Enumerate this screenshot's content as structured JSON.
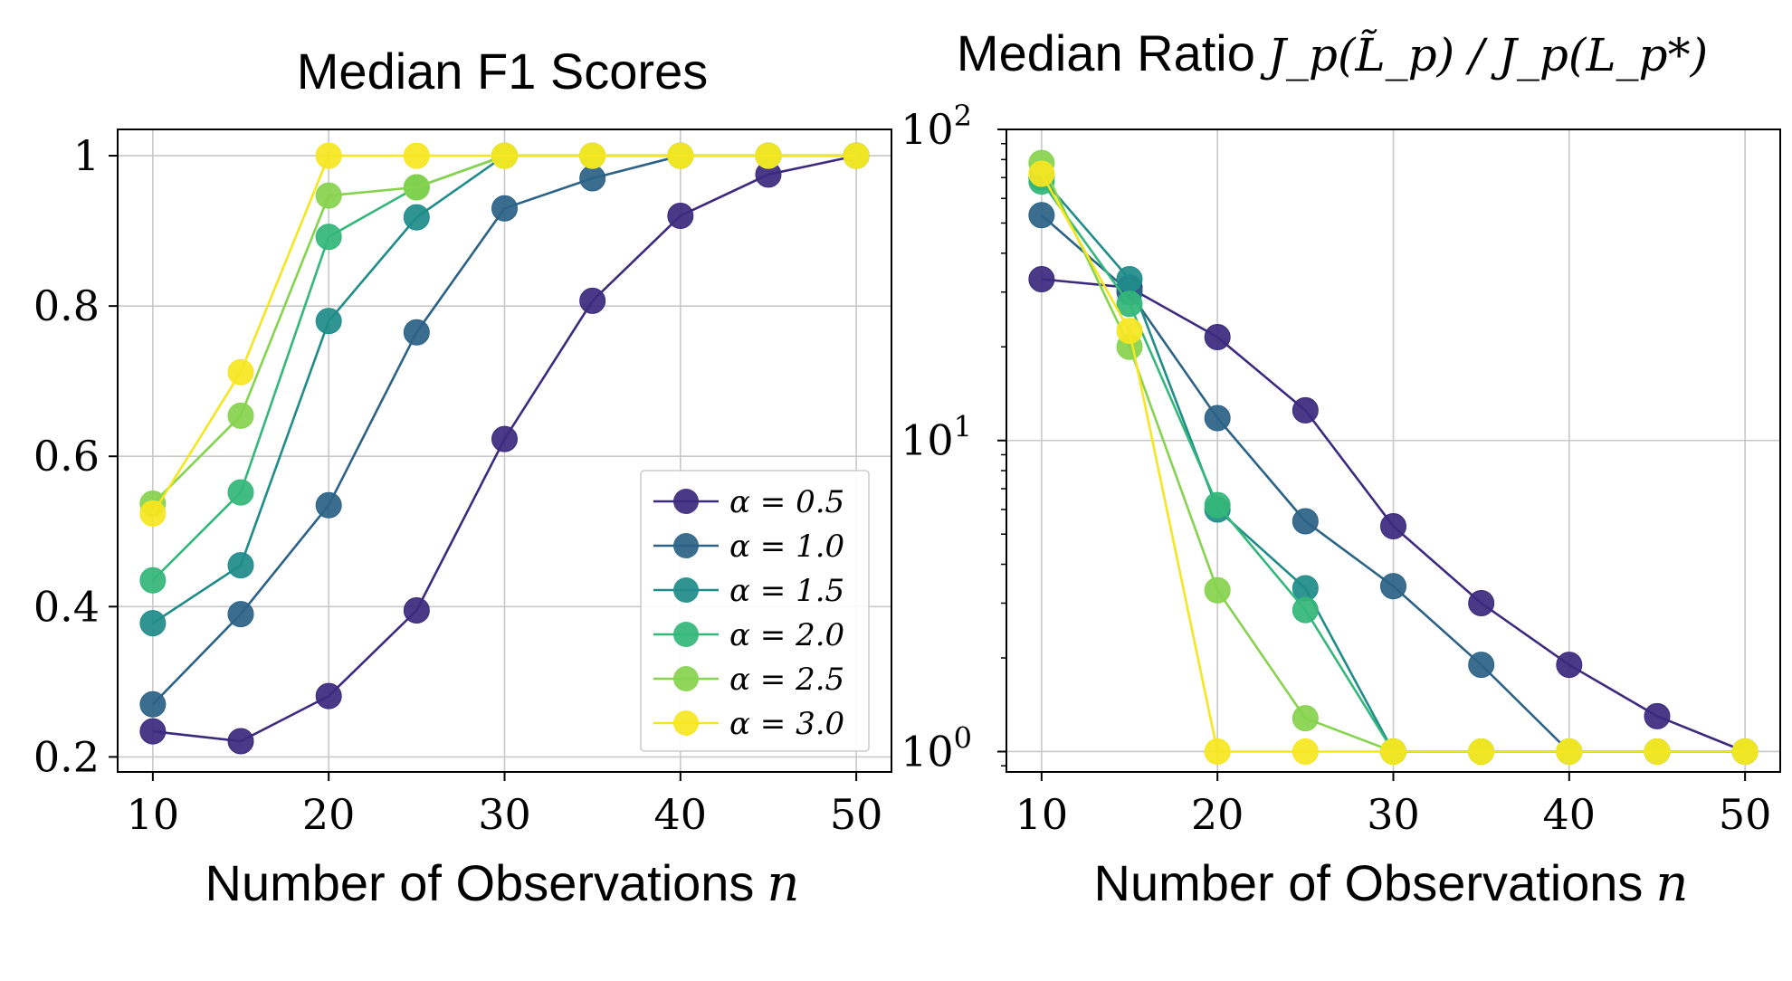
{
  "chart_data": [
    {
      "type": "line",
      "title": "Median F1 Scores",
      "xlabel": "Number of Observations",
      "xlabel_var": "n",
      "ylabel": "",
      "x": [
        10,
        15,
        20,
        25,
        30,
        35,
        40,
        45,
        50
      ],
      "xlim": [
        8,
        52
      ],
      "ylim": [
        0.18,
        1.035
      ],
      "yscale": "linear",
      "xticks": [
        "10",
        "20",
        "30",
        "40",
        "50"
      ],
      "xtick_values": [
        10,
        20,
        30,
        40,
        50
      ],
      "yticks": [
        "0.2",
        "0.4",
        "0.6",
        "0.8",
        "1"
      ],
      "ytick_values": [
        0.2,
        0.4,
        0.6,
        0.8,
        1.0
      ],
      "grid": true,
      "legend": "lower-right",
      "series": [
        {
          "name": "α = 0.5",
          "color": "#3b2a7e",
          "values": [
            0.234,
            0.221,
            0.281,
            0.395,
            0.623,
            0.807,
            0.92,
            0.975,
            1.0
          ]
        },
        {
          "name": "α = 1.0",
          "color": "#2c6286",
          "values": [
            0.27,
            0.39,
            0.535,
            0.765,
            0.93,
            0.97,
            1.0,
            1.0,
            1.0
          ]
        },
        {
          "name": "α = 1.5",
          "color": "#1f8c8a",
          "values": [
            0.378,
            0.455,
            0.78,
            0.918,
            1.0,
            1.0,
            1.0,
            1.0,
            1.0
          ]
        },
        {
          "name": "α = 2.0",
          "color": "#34b77a",
          "values": [
            0.435,
            0.552,
            0.892,
            0.958,
            1.0,
            1.0,
            1.0,
            1.0,
            1.0
          ]
        },
        {
          "name": "α = 2.5",
          "color": "#86d34e",
          "values": [
            0.537,
            0.654,
            0.947,
            0.958,
            1.0,
            1.0,
            1.0,
            1.0,
            1.0
          ]
        },
        {
          "name": "α = 3.0",
          "color": "#f6e621",
          "values": [
            0.524,
            0.712,
            1.0,
            1.0,
            1.0,
            1.0,
            1.0,
            1.0,
            1.0
          ]
        }
      ]
    },
    {
      "type": "line",
      "title": "Median Ratio",
      "title_math": "J_p(L̃_p) / J_p(L_p*)",
      "xlabel": "Number of Observations",
      "xlabel_var": "n",
      "ylabel": "",
      "x": [
        10,
        15,
        20,
        25,
        30,
        35,
        40,
        45,
        50
      ],
      "xlim": [
        8,
        52
      ],
      "ylim": [
        0.86,
        100
      ],
      "yscale": "log",
      "xticks": [
        "10",
        "20",
        "30",
        "40",
        "50"
      ],
      "xtick_values": [
        10,
        20,
        30,
        40,
        50
      ],
      "yticks": [
        "10",
        "10",
        "10"
      ],
      "ytick_exponents": [
        "0",
        "1",
        "2"
      ],
      "ytick_values": [
        1,
        10,
        100
      ],
      "grid": true,
      "legend": "none",
      "series": [
        {
          "name": "α = 0.5",
          "color": "#3b2a7e",
          "values": [
            33.0,
            31.0,
            21.5,
            12.5,
            5.3,
            3.0,
            1.9,
            1.3,
            1.0
          ]
        },
        {
          "name": "α = 1.0",
          "color": "#2c6286",
          "values": [
            53.0,
            30.0,
            11.8,
            5.5,
            3.4,
            1.9,
            1.0,
            1.0,
            1.0
          ]
        },
        {
          "name": "α = 1.5",
          "color": "#1f8c8a",
          "values": [
            70.0,
            33.0,
            6.0,
            3.35,
            1.0,
            1.0,
            1.0,
            1.0,
            1.0
          ]
        },
        {
          "name": "α = 2.0",
          "color": "#34b77a",
          "values": [
            68.0,
            27.5,
            6.2,
            2.85,
            1.0,
            1.0,
            1.0,
            1.0,
            1.0
          ]
        },
        {
          "name": "α = 2.5",
          "color": "#86d34e",
          "values": [
            78.0,
            20.0,
            3.3,
            1.28,
            1.0,
            1.0,
            1.0,
            1.0,
            1.0
          ]
        },
        {
          "name": "α = 3.0",
          "color": "#f6e621",
          "values": [
            72.0,
            22.5,
            1.0,
            1.0,
            1.0,
            1.0,
            1.0,
            1.0,
            1.0
          ]
        }
      ]
    }
  ]
}
